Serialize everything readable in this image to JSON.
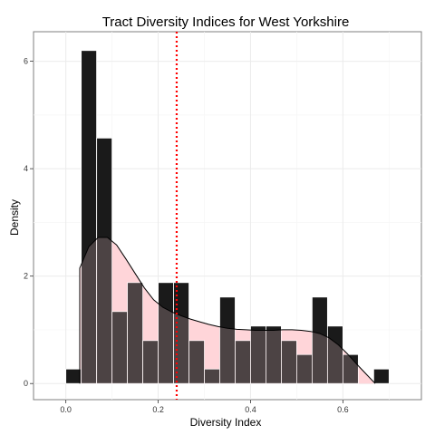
{
  "chart_data": {
    "type": "bar",
    "title": "Tract Diversity Indices for West Yorkshire",
    "xlabel": "Diversity Index",
    "ylabel": "Density",
    "xlim": [
      -0.07,
      0.77
    ],
    "ylim": [
      -0.3,
      6.55
    ],
    "x_ticks": [
      {
        "value": 0.0,
        "label": "0.0"
      },
      {
        "value": 0.2,
        "label": "0.2"
      },
      {
        "value": 0.4,
        "label": "0.4"
      },
      {
        "value": 0.6,
        "label": "0.6"
      }
    ],
    "y_ticks": [
      {
        "value": 0,
        "label": "0"
      },
      {
        "value": 2,
        "label": "2"
      },
      {
        "value": 4,
        "label": "4"
      },
      {
        "value": 6,
        "label": "6"
      }
    ],
    "grid": true,
    "bin_width": 0.0333,
    "histogram": {
      "bin_starts": [
        0.0,
        0.0333,
        0.0667,
        0.1,
        0.1333,
        0.1667,
        0.2,
        0.2333,
        0.2667,
        0.3,
        0.3333,
        0.3667,
        0.4,
        0.4333,
        0.4667,
        0.5,
        0.5333,
        0.5667,
        0.6,
        0.6333,
        0.6667
      ],
      "values": [
        0.27,
        6.2,
        4.57,
        1.34,
        1.88,
        0.8,
        1.88,
        1.88,
        0.8,
        0.27,
        1.61,
        0.8,
        1.07,
        1.07,
        0.8,
        0.54,
        1.61,
        1.07,
        0.54,
        0.0,
        0.27
      ],
      "color": "#1a1a1a"
    },
    "density": {
      "x": [
        0.03,
        0.05,
        0.07,
        0.09,
        0.11,
        0.13,
        0.15,
        0.17,
        0.19,
        0.21,
        0.23,
        0.25,
        0.27,
        0.29,
        0.31,
        0.33,
        0.35,
        0.37,
        0.39,
        0.41,
        0.43,
        0.45,
        0.47,
        0.49,
        0.51,
        0.53,
        0.55,
        0.57,
        0.59,
        0.61,
        0.63,
        0.65,
        0.67
      ],
      "y": [
        2.15,
        2.55,
        2.72,
        2.72,
        2.58,
        2.32,
        2.05,
        1.78,
        1.56,
        1.42,
        1.33,
        1.26,
        1.2,
        1.15,
        1.1,
        1.06,
        1.03,
        1.01,
        1.0,
        0.99,
        0.99,
        0.99,
        1.0,
        1.0,
        0.99,
        0.97,
        0.93,
        0.85,
        0.72,
        0.55,
        0.36,
        0.18,
        0.0
      ],
      "fill": "#ffd5d9",
      "fill_opacity": 0.85,
      "stroke": "#000000"
    },
    "vline": {
      "x": 0.24,
      "color": "#ff0000",
      "style": "dotted"
    }
  }
}
